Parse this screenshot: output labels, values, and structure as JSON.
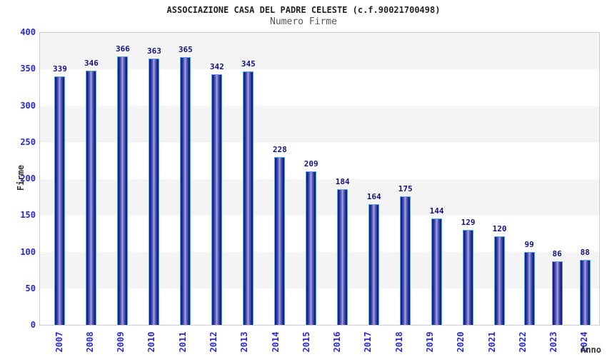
{
  "header": {
    "title": "ASSOCIAZIONE CASA DEL PADRE CELESTE (c.f.90021700498)",
    "subtitle": "Numero Firme"
  },
  "chart_data": {
    "type": "bar",
    "title": "ASSOCIAZIONE CASA DEL PADRE CELESTE (c.f.90021700498)",
    "subtitle": "Numero Firme",
    "categories": [
      "2007",
      "2008",
      "2009",
      "2010",
      "2011",
      "2012",
      "2013",
      "2014",
      "2015",
      "2016",
      "2017",
      "2018",
      "2019",
      "2020",
      "2021",
      "2022",
      "2023",
      "2024"
    ],
    "values": [
      339,
      346,
      366,
      363,
      365,
      342,
      345,
      228,
      209,
      184,
      164,
      175,
      144,
      129,
      120,
      99,
      86,
      88
    ],
    "xlabel": "Anno",
    "ylabel": "Firme",
    "ylim": [
      0,
      400
    ],
    "yticks": [
      0,
      50,
      100,
      150,
      200,
      250,
      300,
      350,
      400
    ],
    "grid": "alternating horizontal gray/white bands, gray topmost",
    "legend_position": "none",
    "bar_labels_shown": true
  },
  "colors": {
    "tick_label_blue": "#2929cc",
    "value_label_navy": "#12127d",
    "title_color": "#222222",
    "subtitle_color": "#555555",
    "axis_title_color": "#333333",
    "bar_border_lightblue": "#5ba0e0",
    "bar_edge_dark": "#17177e",
    "bar_center_light": "#abb2e8",
    "band_gray": "#f4f4f4",
    "plot_border": "#cccccc"
  }
}
